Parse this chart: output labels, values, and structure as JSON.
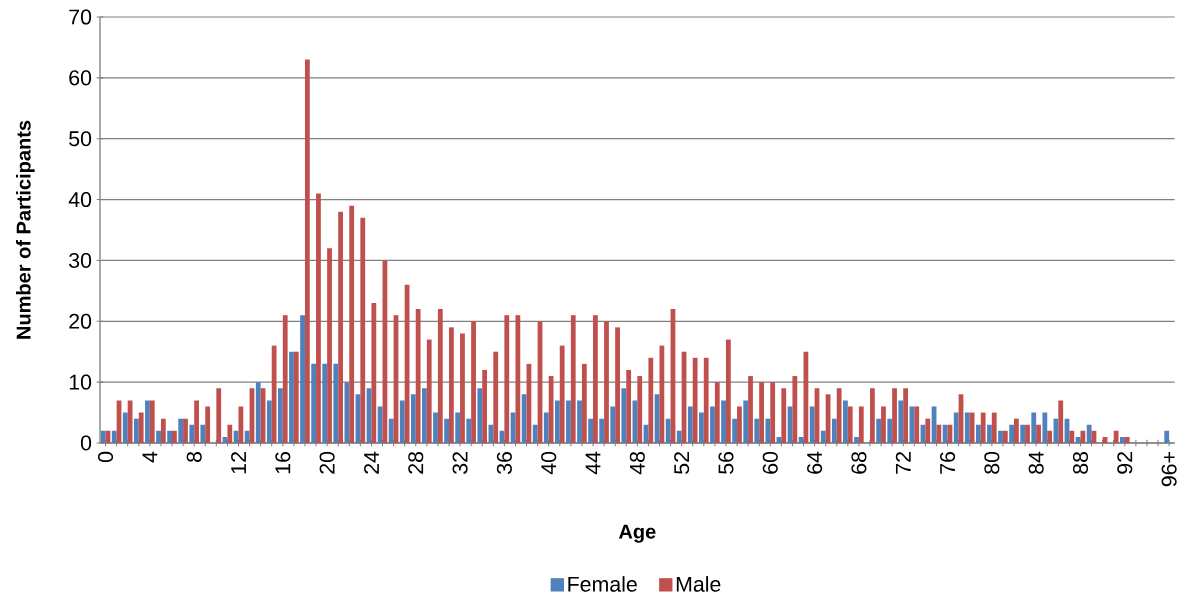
{
  "chart_data": {
    "type": "bar",
    "xlabel": "Age",
    "ylabel": "Number of Participants",
    "categories": [
      "0",
      null,
      null,
      null,
      "4",
      null,
      null,
      null,
      "8",
      null,
      null,
      null,
      "12",
      null,
      null,
      null,
      "16",
      null,
      null,
      null,
      "20",
      null,
      null,
      null,
      "24",
      null,
      null,
      null,
      "28",
      null,
      null,
      null,
      "32",
      null,
      null,
      null,
      "36",
      null,
      null,
      null,
      "40",
      null,
      null,
      null,
      "44",
      null,
      null,
      null,
      "48",
      null,
      null,
      null,
      "52",
      null,
      null,
      null,
      "56",
      null,
      null,
      null,
      "60",
      null,
      null,
      null,
      "64",
      null,
      null,
      null,
      "68",
      null,
      null,
      null,
      "72",
      null,
      null,
      null,
      "76",
      null,
      null,
      null,
      "80",
      null,
      null,
      null,
      "84",
      null,
      null,
      null,
      "88",
      null,
      null,
      null,
      "92",
      null,
      null,
      null,
      "96+"
    ],
    "series": [
      {
        "name": "Female",
        "color": "#4f81bd",
        "values": [
          2,
          2,
          5,
          4,
          7,
          2,
          2,
          4,
          3,
          3,
          0,
          1,
          2,
          2,
          10,
          7,
          9,
          15,
          21,
          13,
          13,
          13,
          10,
          8,
          9,
          6,
          4,
          7,
          8,
          9,
          5,
          4,
          5,
          4,
          9,
          3,
          2,
          5,
          8,
          3,
          5,
          7,
          7,
          7,
          4,
          4,
          6,
          9,
          7,
          3,
          8,
          4,
          2,
          6,
          5,
          6,
          7,
          4,
          7,
          4,
          4,
          1,
          6,
          1,
          6,
          2,
          4,
          7,
          1,
          0,
          4,
          4,
          7,
          6,
          3,
          6,
          3,
          5,
          5,
          3,
          3,
          2,
          3,
          3,
          5,
          5,
          4,
          4,
          1,
          3,
          0,
          0,
          1,
          0,
          0,
          0,
          2
        ]
      },
      {
        "name": "Male",
        "color": "#c0504d",
        "values": [
          2,
          7,
          7,
          5,
          7,
          4,
          2,
          4,
          7,
          6,
          9,
          3,
          6,
          9,
          9,
          16,
          21,
          15,
          63,
          41,
          32,
          38,
          39,
          37,
          23,
          30,
          21,
          26,
          22,
          17,
          22,
          19,
          18,
          20,
          12,
          15,
          21,
          21,
          13,
          20,
          11,
          16,
          21,
          13,
          21,
          20,
          19,
          12,
          11,
          14,
          16,
          22,
          15,
          14,
          14,
          10,
          17,
          6,
          11,
          10,
          10,
          9,
          11,
          15,
          9,
          8,
          9,
          6,
          6,
          9,
          6,
          9,
          9,
          6,
          4,
          3,
          3,
          8,
          5,
          5,
          5,
          2,
          4,
          3,
          3,
          2,
          7,
          2,
          2,
          2,
          1,
          2,
          1,
          0,
          0,
          0,
          0
        ]
      }
    ],
    "ylim": [
      0,
      70
    ],
    "yticks": [
      0,
      10,
      20,
      30,
      40,
      50,
      60,
      70
    ],
    "grid": "y",
    "legend": "bottom"
  }
}
